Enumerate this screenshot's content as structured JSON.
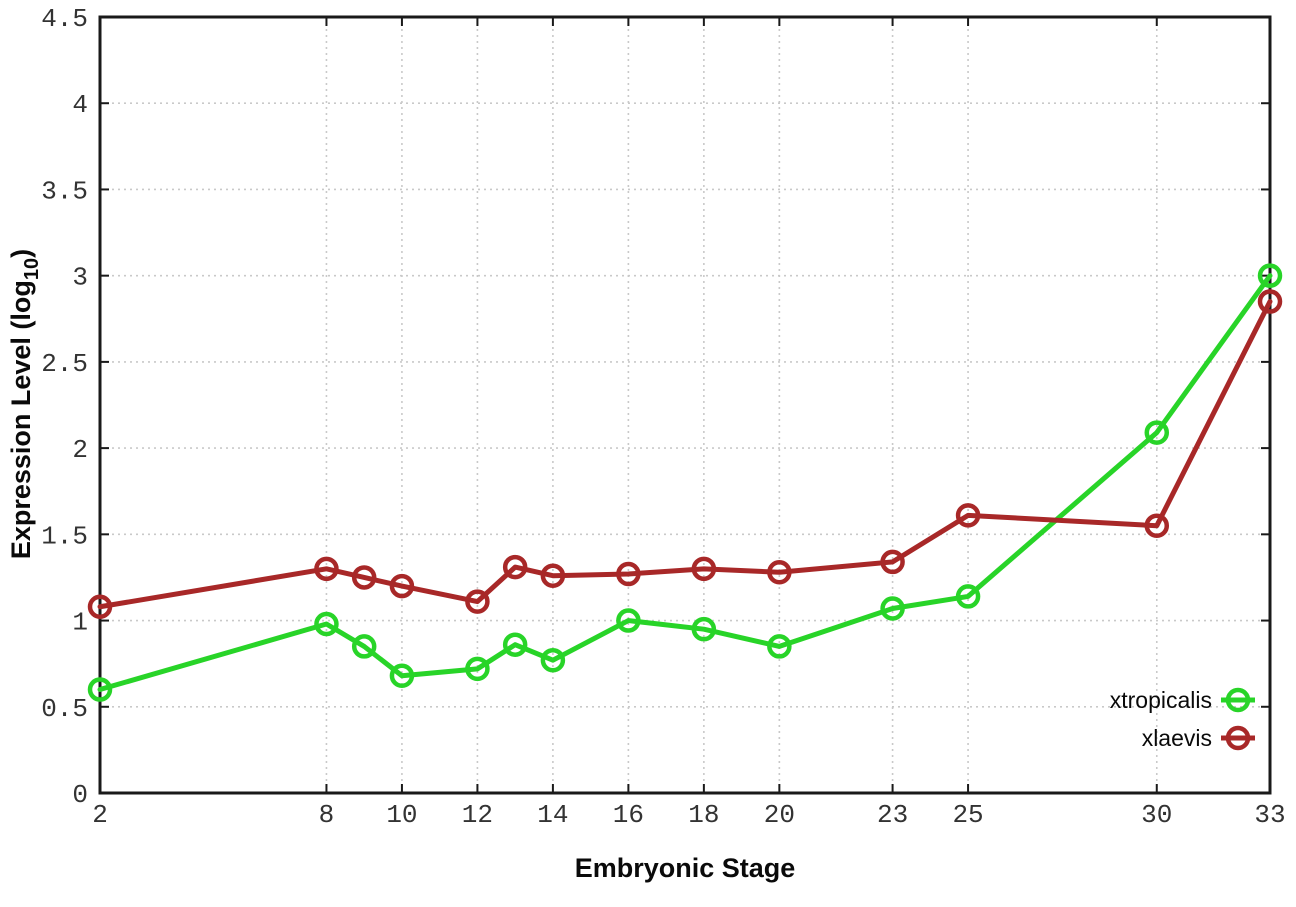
{
  "figure": {
    "background": "#ffffff",
    "xlabel": "Embryonic Stage",
    "ylabel_prefix": "Expression Level (log",
    "ylabel_sub": "10",
    "ylabel_suffix": ")"
  },
  "chart_data": {
    "type": "line",
    "title": "",
    "xlabel": "Embryonic Stage",
    "ylabel": "Expression Level (log10)",
    "x": [
      2,
      8,
      9,
      10,
      12,
      13,
      14,
      16,
      18,
      20,
      23,
      25,
      30,
      33
    ],
    "series": [
      {
        "name": "xtropicalis",
        "color": "#28d428",
        "marker": "open-circle",
        "values": [
          0.6,
          0.98,
          0.85,
          0.68,
          0.72,
          0.86,
          0.77,
          1.0,
          0.95,
          0.85,
          1.07,
          1.14,
          2.09,
          3.0
        ]
      },
      {
        "name": "xlaevis",
        "color": "#a82828",
        "marker": "open-circle",
        "values": [
          1.08,
          1.3,
          1.25,
          1.2,
          1.11,
          1.31,
          1.26,
          1.27,
          1.3,
          1.28,
          1.34,
          1.61,
          1.55,
          2.85
        ]
      }
    ],
    "x_tick_labels": [
      "2",
      "8",
      "10",
      "12",
      "14",
      "16",
      "18",
      "20",
      "23",
      "25",
      "30",
      "33"
    ],
    "x_tick_values": [
      2,
      8,
      10,
      12,
      14,
      16,
      18,
      20,
      23,
      25,
      30,
      33
    ],
    "y_tick_values": [
      0,
      0.5,
      1,
      1.5,
      2,
      2.5,
      3,
      3.5,
      4,
      4.5
    ],
    "xlim": [
      2,
      33
    ],
    "ylim": [
      0,
      4.5
    ],
    "grid": true,
    "legend_position": "bottom-right",
    "colors": {
      "grid": "#c9c9c9",
      "axis": "#1a1a1a",
      "tick_label": "#333333"
    }
  }
}
